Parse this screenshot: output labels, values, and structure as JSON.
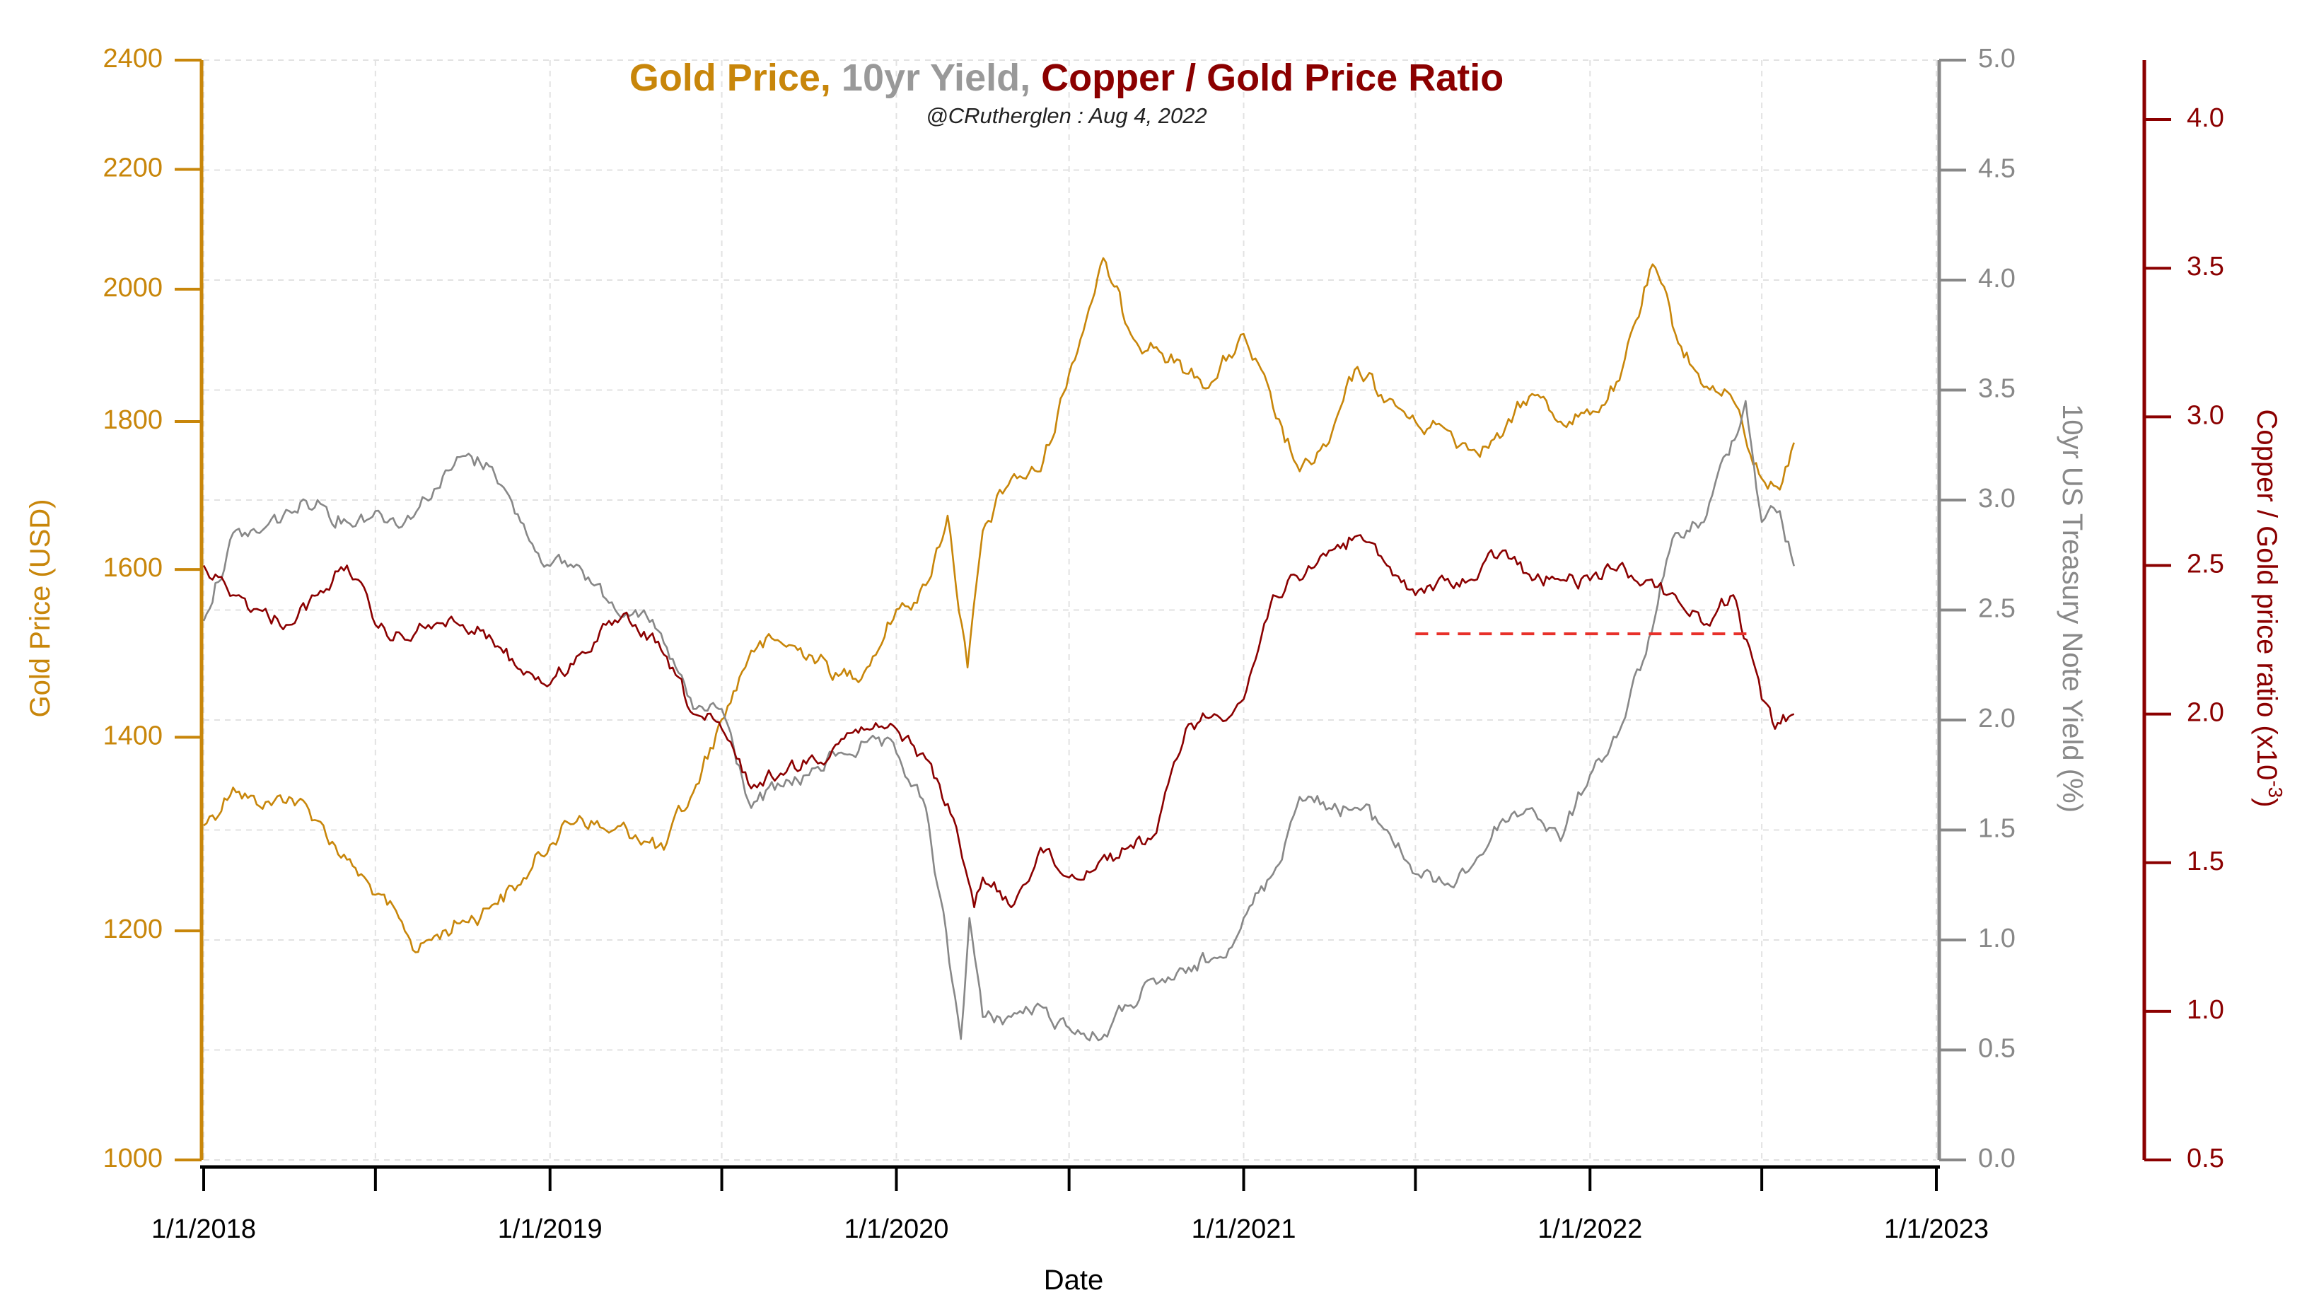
{
  "chart_data": {
    "type": "line",
    "title": {
      "part1": "Gold Price,",
      "part2": " 10yr Yield,",
      "part3": " Copper / Gold Price Ratio"
    },
    "subtitle": "@CRutherglen : Aug 4, 2022",
    "xlabel": "Date",
    "x_axis": {
      "tick_labels": [
        "1/1/2018",
        "1/1/2019",
        "1/1/2020",
        "1/1/2021",
        "1/1/2022",
        "1/1/2023"
      ],
      "xlim": [
        "1/1/2018",
        "1/1/2023"
      ]
    },
    "y_left": {
      "label": "Gold Price (USD)",
      "scale": "log",
      "ylim": [
        1000,
        2400
      ],
      "ticks": [
        "1000",
        "1200",
        "1400",
        "1600",
        "1800",
        "2000",
        "2200",
        "2400"
      ],
      "color": "#c8860a"
    },
    "y_right1": {
      "label": "10yr US Treasury Note Yield (%)",
      "ylim": [
        0,
        5
      ],
      "ticks": [
        "0.0",
        "0.5",
        "1.0",
        "1.5",
        "2.0",
        "2.5",
        "3.0",
        "3.5",
        "4.0",
        "4.5",
        "5.0"
      ],
      "color": "#888888"
    },
    "y_right2": {
      "label_main": "Copper / Gold price ratio (x10",
      "label_exp": "-3",
      "label_end": ")",
      "ylim": [
        0.5,
        4.2
      ],
      "ticks": [
        "0.5",
        "1.0",
        "1.5",
        "2.0",
        "2.5",
        "3.0",
        "3.5",
        "4.0"
      ],
      "color": "#8b0000"
    },
    "grid": true,
    "series": [
      {
        "axis": "left",
        "color": "#c8860a",
        "x": [
          "2018-01-01",
          "2018-02-01",
          "2018-03-01",
          "2018-04-01",
          "2018-05-01",
          "2018-06-01",
          "2018-07-01",
          "2018-08-01",
          "2018-08-15",
          "2018-09-01",
          "2018-10-01",
          "2018-11-01",
          "2018-12-01",
          "2019-01-01",
          "2019-02-01",
          "2019-03-01",
          "2019-04-01",
          "2019-05-01",
          "2019-06-01",
          "2019-07-01",
          "2019-08-01",
          "2019-09-01",
          "2019-10-01",
          "2019-11-01",
          "2019-12-01",
          "2020-01-01",
          "2020-02-01",
          "2020-02-24",
          "2020-03-16",
          "2020-04-01",
          "2020-05-01",
          "2020-06-01",
          "2020-07-01",
          "2020-08-06",
          "2020-09-01",
          "2020-10-01",
          "2020-11-01",
          "2020-12-01",
          "2021-01-01",
          "2021-02-01",
          "2021-03-01",
          "2021-04-01",
          "2021-05-01",
          "2021-06-01",
          "2021-07-01",
          "2021-08-01",
          "2021-09-01",
          "2021-10-01",
          "2021-11-01",
          "2021-12-01",
          "2022-01-01",
          "2022-02-01",
          "2022-03-08",
          "2022-04-01",
          "2022-05-01",
          "2022-06-01",
          "2022-07-01",
          "2022-07-20",
          "2022-08-04"
        ],
        "y": [
          1305,
          1345,
          1325,
          1335,
          1310,
          1270,
          1235,
          1200,
          1180,
          1195,
          1210,
          1225,
          1245,
          1285,
          1315,
          1300,
          1295,
          1280,
          1340,
          1420,
          1500,
          1510,
          1495,
          1470,
          1480,
          1550,
          1580,
          1670,
          1480,
          1650,
          1720,
          1730,
          1870,
          2050,
          1940,
          1910,
          1870,
          1860,
          1930,
          1820,
          1730,
          1770,
          1880,
          1830,
          1800,
          1790,
          1760,
          1780,
          1840,
          1800,
          1810,
          1860,
          2040,
          1930,
          1850,
          1830,
          1720,
          1705,
          1770
        ]
      },
      {
        "axis": "right1",
        "color": "#888888",
        "x": [
          "2018-01-01",
          "2018-02-01",
          "2018-03-01",
          "2018-04-01",
          "2018-05-01",
          "2018-06-01",
          "2018-07-01",
          "2018-08-01",
          "2018-09-01",
          "2018-10-01",
          "2018-11-01",
          "2018-12-01",
          "2019-01-01",
          "2019-02-01",
          "2019-03-01",
          "2019-04-01",
          "2019-05-01",
          "2019-06-01",
          "2019-07-01",
          "2019-08-01",
          "2019-09-01",
          "2019-10-01",
          "2019-11-01",
          "2019-12-01",
          "2020-01-01",
          "2020-02-01",
          "2020-03-09",
          "2020-03-18",
          "2020-04-01",
          "2020-05-01",
          "2020-06-01",
          "2020-07-01",
          "2020-08-04",
          "2020-09-01",
          "2020-10-01",
          "2020-11-01",
          "2020-12-01",
          "2021-01-01",
          "2021-02-01",
          "2021-03-01",
          "2021-04-01",
          "2021-05-01",
          "2021-06-01",
          "2021-07-01",
          "2021-08-01",
          "2021-09-01",
          "2021-10-01",
          "2021-11-01",
          "2021-12-01",
          "2022-01-01",
          "2022-02-01",
          "2022-03-01",
          "2022-04-01",
          "2022-05-01",
          "2022-06-14",
          "2022-07-01",
          "2022-07-20",
          "2022-08-04"
        ],
        "y": [
          2.45,
          2.85,
          2.85,
          2.95,
          3.0,
          2.9,
          2.95,
          2.9,
          3.05,
          3.2,
          3.15,
          2.9,
          2.7,
          2.7,
          2.55,
          2.5,
          2.35,
          2.05,
          2.05,
          1.6,
          1.7,
          1.75,
          1.85,
          1.9,
          1.85,
          1.6,
          0.55,
          1.1,
          0.65,
          0.65,
          0.7,
          0.6,
          0.55,
          0.7,
          0.8,
          0.85,
          0.92,
          1.1,
          1.3,
          1.65,
          1.6,
          1.6,
          1.5,
          1.3,
          1.25,
          1.35,
          1.55,
          1.6,
          1.45,
          1.75,
          1.95,
          2.3,
          2.85,
          2.9,
          3.45,
          2.9,
          2.95,
          2.7
        ]
      },
      {
        "axis": "right2",
        "color": "#8b0000",
        "x": [
          "2018-01-01",
          "2018-02-01",
          "2018-03-01",
          "2018-04-01",
          "2018-05-01",
          "2018-06-01",
          "2018-07-01",
          "2018-08-01",
          "2018-09-01",
          "2018-10-01",
          "2018-11-01",
          "2018-12-01",
          "2019-01-01",
          "2019-02-01",
          "2019-03-01",
          "2019-04-01",
          "2019-05-01",
          "2019-06-01",
          "2019-07-01",
          "2019-08-01",
          "2019-09-01",
          "2019-10-01",
          "2019-11-01",
          "2019-12-01",
          "2020-01-01",
          "2020-02-01",
          "2020-03-01",
          "2020-03-23",
          "2020-04-01",
          "2020-05-01",
          "2020-06-01",
          "2020-07-01",
          "2020-08-01",
          "2020-09-01",
          "2020-10-01",
          "2020-11-01",
          "2020-12-01",
          "2021-01-01",
          "2021-02-01",
          "2021-03-01",
          "2021-04-01",
          "2021-05-01",
          "2021-06-01",
          "2021-07-01",
          "2021-08-01",
          "2021-09-01",
          "2021-10-01",
          "2021-11-01",
          "2021-12-01",
          "2022-01-01",
          "2022-02-01",
          "2022-03-01",
          "2022-04-01",
          "2022-05-01",
          "2022-06-01",
          "2022-06-15",
          "2022-07-01",
          "2022-07-15",
          "2022-08-04"
        ],
        "y": [
          2.5,
          2.4,
          2.35,
          2.3,
          2.4,
          2.5,
          2.3,
          2.25,
          2.3,
          2.3,
          2.25,
          2.15,
          2.1,
          2.2,
          2.3,
          2.3,
          2.2,
          2.0,
          1.95,
          1.75,
          1.8,
          1.85,
          1.9,
          1.95,
          1.95,
          1.85,
          1.65,
          1.35,
          1.45,
          1.35,
          1.55,
          1.45,
          1.5,
          1.55,
          1.6,
          1.95,
          2.0,
          2.05,
          2.4,
          2.45,
          2.55,
          2.6,
          2.5,
          2.4,
          2.45,
          2.45,
          2.55,
          2.45,
          2.45,
          2.45,
          2.5,
          2.45,
          2.4,
          2.3,
          2.4,
          2.25,
          2.05,
          1.95,
          2.0
        ]
      }
    ],
    "reference_line": {
      "axis": "right2",
      "color": "#e8302a",
      "y": 2.27,
      "x_start": "2021-07-01",
      "x_end": "2022-06-15",
      "style": "dashed"
    }
  }
}
